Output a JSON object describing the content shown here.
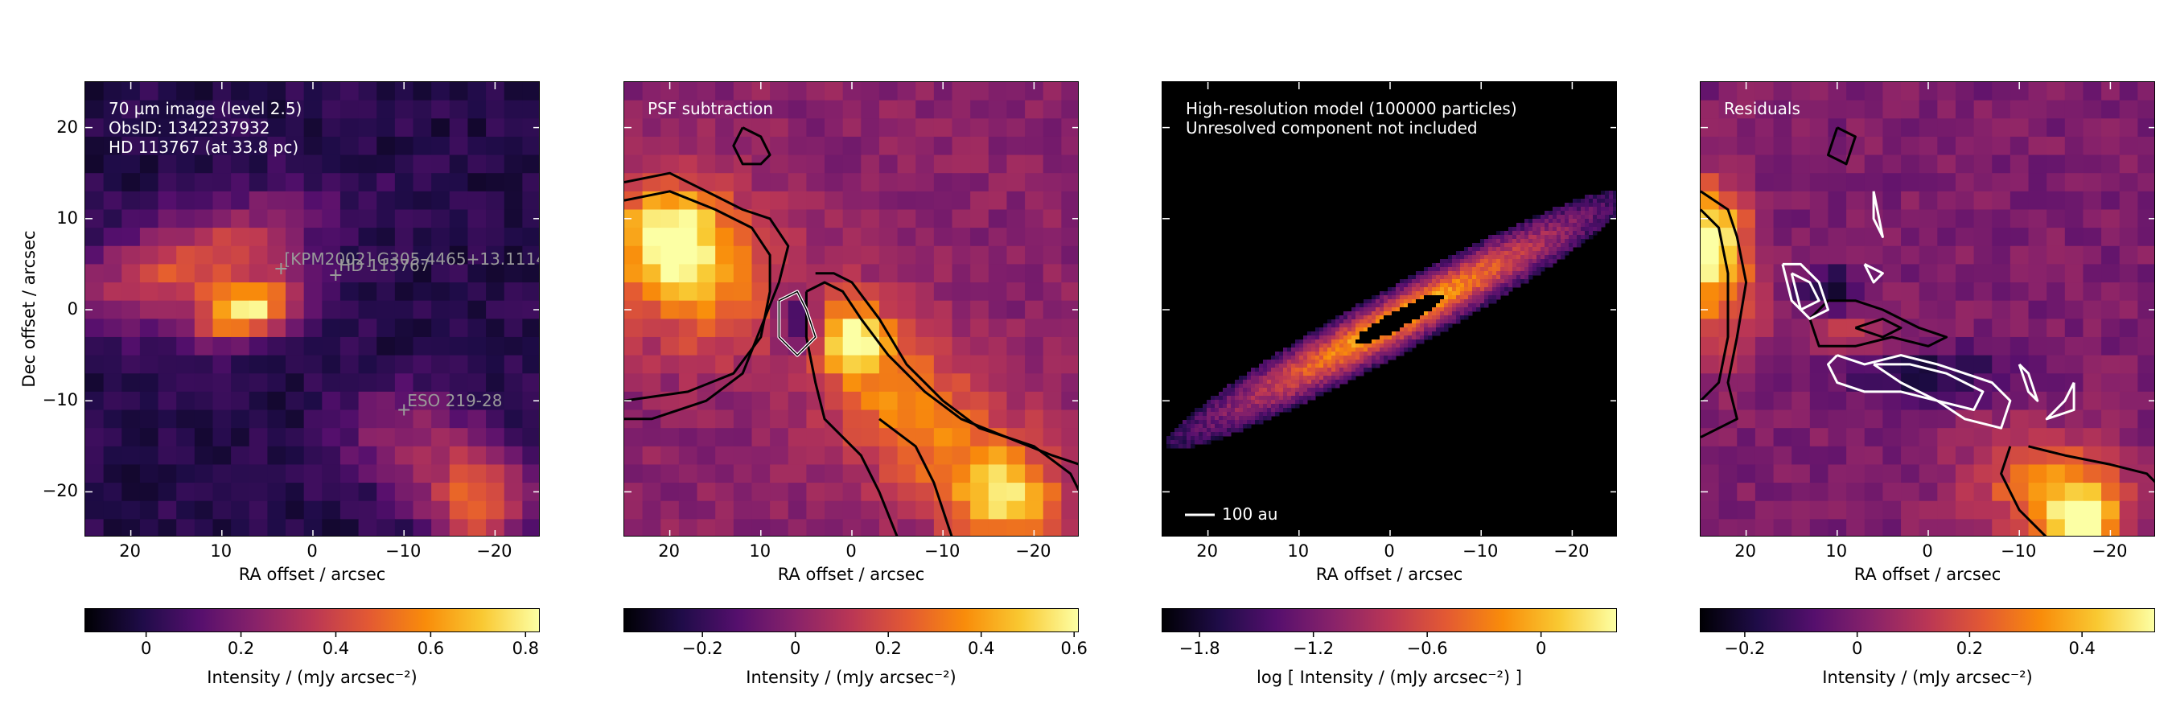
{
  "chart_data": [
    {
      "type": "heatmap",
      "annotation": [
        "70 µm image (level 2.5)",
        "ObsID: 1342237932",
        "HD 113767 (at 33.8 pc)"
      ],
      "xlabel": "RA offset / arcsec",
      "ylabel": "Dec offset / arcsec",
      "xlim": [
        25,
        -25
      ],
      "ylim": [
        -25,
        25
      ],
      "xticks": [
        20,
        10,
        0,
        -10,
        -20
      ],
      "yticks": [
        20,
        10,
        0,
        -10,
        -20
      ],
      "stars": [
        {
          "name": "[KPM2002] G305.4465+13.1114",
          "ra": 3.5,
          "dec": 4.5
        },
        {
          "name": "HD 113767",
          "ra": -2.5,
          "dec": 3.8
        },
        {
          "name": "ESO 219-28",
          "ra": -10.0,
          "dec": -11.0
        }
      ],
      "colorbar": {
        "label": "Intensity / (mJy arcsec⁻²)",
        "ticks": [
          0,
          0.2,
          0.4,
          0.6,
          0.8
        ],
        "range": [
          -0.13,
          0.83
        ],
        "cmap": "inferno"
      }
    },
    {
      "type": "heatmap",
      "annotation": [
        "PSF subtraction"
      ],
      "xlabel": "RA offset / arcsec",
      "xlim": [
        25,
        -25
      ],
      "ylim": [
        -25,
        25
      ],
      "xticks": [
        20,
        10,
        0,
        -10,
        -20
      ],
      "contours": {
        "colors": [
          "#000000",
          "#ffffff"
        ]
      },
      "colorbar": {
        "label": "Intensity / (mJy arcsec⁻²)",
        "ticks": [
          -0.2,
          0,
          0.2,
          0.4,
          0.6
        ],
        "range": [
          -0.37,
          0.61
        ],
        "cmap": "inferno"
      }
    },
    {
      "type": "heatmap",
      "annotation": [
        "High-resolution model (100000 particles)",
        "Unresolved component not included"
      ],
      "scale_bar_label": "100 au",
      "xlabel": "RA offset / arcsec",
      "xlim": [
        25,
        -25
      ],
      "ylim": [
        -25,
        25
      ],
      "xticks": [
        20,
        10,
        0,
        -10,
        -20
      ],
      "colorbar": {
        "label": "log [ Intensity / (mJy arcsec⁻²) ]",
        "ticks": [
          -1.8,
          -1.2,
          -0.6,
          0
        ],
        "range": [
          -2.0,
          0.4
        ],
        "cmap": "inferno"
      }
    },
    {
      "type": "heatmap",
      "annotation": [
        "Residuals"
      ],
      "xlabel": "RA offset / arcsec",
      "xlim": [
        25,
        -25
      ],
      "ylim": [
        -25,
        25
      ],
      "xticks": [
        20,
        10,
        0,
        -10,
        -20
      ],
      "contours": {
        "colors": [
          "#000000",
          "#ffffff"
        ]
      },
      "colorbar": {
        "label": "Intensity / (mJy arcsec⁻²)",
        "ticks": [
          -0.2,
          0,
          0.2,
          0.4
        ],
        "range": [
          -0.28,
          0.53
        ],
        "cmap": "inferno"
      }
    }
  ]
}
